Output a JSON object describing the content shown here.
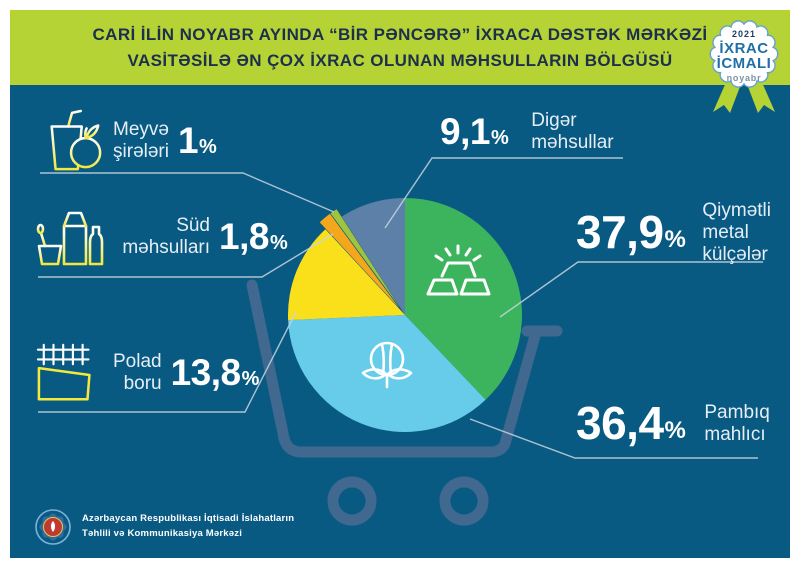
{
  "colors": {
    "background": "#095a83",
    "band": "#b5d334",
    "title_text": "#1d2f4e",
    "cart": "#41688e",
    "leader_line": "#c9d5e0",
    "badge_blue": "#1f6fa8",
    "badge_ring": "#67a3cc",
    "white": "#ffffff"
  },
  "title": {
    "line1": "CARİ İLİN NOYABR AYINDA “BİR PƏNCƏRƏ” İXRACA DƏSTƏK MƏRKƏZİ",
    "line2": "VASİTƏSİLƏ ƏN ÇOX İXRAC OLUNAN MƏHSULLARIN BÖLGÜSÜ"
  },
  "badge": {
    "year": "2021",
    "line1": "İXRAC",
    "line2": "İCMALI",
    "month": "noyabr"
  },
  "chart_data": {
    "type": "pie",
    "title": "Cari ilin noyabr ayında “Bir Pəncərə” İxraca Dəstək Mərkəzi vasitəsilə ən çox ixrac olunan məhsulların bölgüsü",
    "unit": "%",
    "direction": "clockwise",
    "start_angle_deg": 0,
    "slices": [
      {
        "id": "metal",
        "label": "Qiymətli metal külçələr",
        "value": 37.9,
        "display": "37,9",
        "color": "#3cb45e",
        "exploded": false
      },
      {
        "id": "pambiq",
        "label": "Pambıq mahlıcı",
        "value": 36.4,
        "display": "36,4",
        "color": "#66cce9",
        "exploded": false
      },
      {
        "id": "polad",
        "label": "Polad boru",
        "value": 13.8,
        "display": "13,8",
        "color": "#f9e01b",
        "exploded": false
      },
      {
        "id": "sud",
        "label": "Süd məhsulları",
        "value": 1.8,
        "display": "1,8",
        "color": "#f4a71d",
        "exploded": true
      },
      {
        "id": "meyve",
        "label": "Meyvə şirələri",
        "value": 1.0,
        "display": "1",
        "color": "#9fc43d",
        "exploded": true
      },
      {
        "id": "diger",
        "label": "Digər məhsullar",
        "value": 9.1,
        "display": "9,1",
        "color": "#5c80a8",
        "exploded": false
      }
    ]
  },
  "legend_left": [
    {
      "id": "meyve",
      "icon": "juice-glass-apple-icon",
      "line1": "Meyvə",
      "line2": "şirələri",
      "value": "1",
      "unit": "%"
    },
    {
      "id": "sud",
      "icon": "milk-products-icon",
      "line1": "Süd",
      "line2": "məhsulları",
      "value": "1,8",
      "unit": "%"
    },
    {
      "id": "polad",
      "icon": "steel-pipes-icon",
      "line1": "Polad",
      "line2": "boru",
      "value": "13,8",
      "unit": "%"
    }
  ],
  "legend_right": [
    {
      "id": "diger",
      "value": "9,1",
      "unit": "%",
      "line1": "Digər",
      "line2": "məhsullar"
    },
    {
      "id": "metal",
      "value": "37,9",
      "unit": "%",
      "line1": "Qiymətli",
      "line2": "metal",
      "line3": "külçələr"
    },
    {
      "id": "pambiq",
      "value": "36,4",
      "unit": "%",
      "line1": "Pambıq",
      "line2": "mahlıcı"
    }
  ],
  "footer": {
    "org_line1": "Azərbaycan Respublikası İqtisadi İslahatların",
    "org_line2": "Təhlili və Kommunikasiya Mərkəzi"
  }
}
